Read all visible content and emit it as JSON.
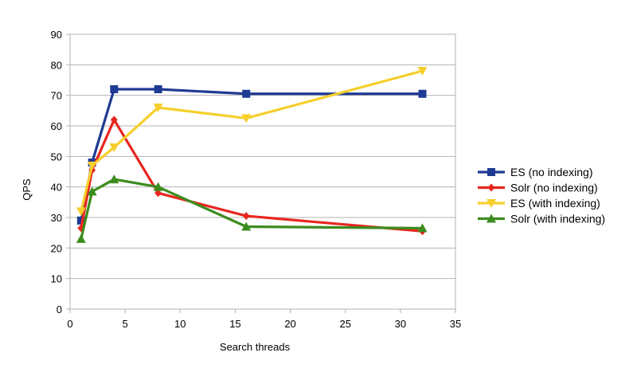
{
  "chart_data": {
    "type": "line",
    "title": "",
    "xlabel": "Search threads",
    "ylabel": "QPS",
    "xlim": [
      0,
      35
    ],
    "ylim": [
      0,
      90
    ],
    "x_ticks": [
      0,
      5,
      10,
      15,
      20,
      25,
      30,
      35
    ],
    "y_ticks": [
      0,
      10,
      20,
      30,
      40,
      50,
      60,
      70,
      80,
      90
    ],
    "grid": "horizontal",
    "legend": "right",
    "series": [
      {
        "name": "ES (no indexing)",
        "color": "#1f3a93",
        "marker": "square",
        "x": [
          1,
          2,
          4,
          8,
          16,
          32
        ],
        "values": [
          29,
          48,
          72,
          72,
          70.5,
          70.5
        ]
      },
      {
        "name": "Solr (no indexing)",
        "color": "#e8261f",
        "marker": "diamond",
        "x": [
          1,
          2,
          4,
          8,
          16,
          32
        ],
        "values": [
          26.5,
          45.5,
          62,
          38,
          30.5,
          25.5
        ]
      },
      {
        "name": "ES (with indexing)",
        "color": "#f6cf2c",
        "marker": "triangle-down",
        "x": [
          1,
          2,
          4,
          8,
          16,
          32
        ],
        "values": [
          32,
          47,
          53,
          66,
          62.5,
          78
        ]
      },
      {
        "name": "Solr (with indexing)",
        "color": "#3c8c1f",
        "marker": "triangle-up",
        "x": [
          1,
          2,
          4,
          8,
          16,
          32
        ],
        "values": [
          23,
          38.5,
          42.5,
          40,
          27,
          26.5
        ]
      }
    ]
  }
}
